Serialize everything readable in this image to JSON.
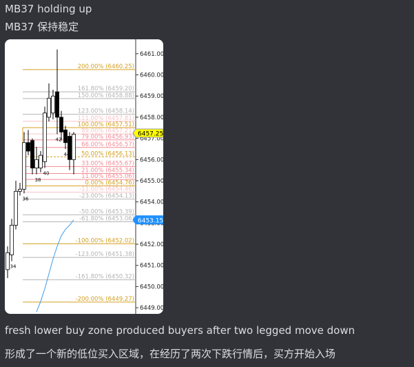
{
  "message": {
    "lines": [
      "MB37 holding up",
      "MB37 保持稳定"
    ],
    "caption": [
      "fresh lower buy zone produced buyers after two legged move down",
      "形成了一个新的低位买入区域，在经历了两次下跌行情后，买方开始入场"
    ]
  },
  "chart": {
    "ylim": [
      6448.71,
      6461.68
    ],
    "yticks": [
      {
        "value": 6461,
        "label": "6461.00"
      },
      {
        "value": 6460,
        "label": "6460.00"
      },
      {
        "value": 6459,
        "label": "6459.00"
      },
      {
        "value": 6458,
        "label": "6458.00"
      },
      {
        "value": 6457,
        "label": "6457.00"
      },
      {
        "value": 6456,
        "label": "6456.00"
      },
      {
        "value": 6455,
        "label": "6455.00"
      },
      {
        "value": 6454,
        "label": "6454.00"
      },
      {
        "value": 6453,
        "label": "6453.00"
      },
      {
        "value": 6452,
        "label": "6452.00"
      },
      {
        "value": 6451,
        "label": "6451.00"
      },
      {
        "value": 6450,
        "label": "6450.00"
      },
      {
        "value": 6449,
        "label": "6449.00"
      }
    ],
    "fibs": [
      {
        "label": "200.00% (6460.25)",
        "price": 6460.25,
        "color": "#d4a020"
      },
      {
        "label": "161.80% (6459.20)",
        "price": 6459.2,
        "color": "#b4b4b4"
      },
      {
        "label": "150.00% (6458.88)",
        "price": 6458.88,
        "color": "#b4b4b4"
      },
      {
        "label": "123.00% (6458.14)",
        "price": 6458.14,
        "color": "#b4b4b4"
      },
      {
        "label": "111.00% (6457.81)",
        "price": 6457.81,
        "color": "#f6c4c8"
      },
      {
        "label": "100.00% (6457.51)",
        "price": 6457.51,
        "color": "#d4a020"
      },
      {
        "label": "89.00% (6457.21)",
        "price": 6457.21,
        "color": "#f6c4c8"
      },
      {
        "label": "79.00% (6456.93)",
        "price": 6456.93,
        "color": "#f28c96"
      },
      {
        "label": "66.00% (6456.57)",
        "price": 6456.57,
        "color": "#f28c96"
      },
      {
        "label": "50.00% (6456.13)",
        "price": 6456.13,
        "color": "#d4a020"
      },
      {
        "label": "33.00% (6455.67)",
        "price": 6455.67,
        "color": "#f28c96"
      },
      {
        "label": "21.00% (6455.34)",
        "price": 6455.34,
        "color": "#f28c96"
      },
      {
        "label": "11.00% (6455.06)",
        "price": 6455.06,
        "color": "#f28c96"
      },
      {
        "label": "0.00% (6454.76)",
        "price": 6454.76,
        "color": "#d4a020"
      },
      {
        "label": "-11.00% (6454.46)",
        "price": 6454.46,
        "color": "#f6c4c8"
      },
      {
        "label": "-23.00% (6454.13)",
        "price": 6454.13,
        "color": "#b4b4b4"
      },
      {
        "label": "-50.00% (6453.39)",
        "price": 6453.39,
        "color": "#b4b4b4"
      },
      {
        "label": "-61.80% (6453.06)",
        "price": 6453.06,
        "color": "#b4b4b4"
      },
      {
        "label": "-100.00% (6452.02)",
        "price": 6452.02,
        "color": "#d4a020"
      },
      {
        "label": "-123.00% (6451.38)",
        "price": 6451.38,
        "color": "#b4b4b4"
      },
      {
        "label": "-161.80% (6450.32)",
        "price": 6450.32,
        "color": "#b4b4b4"
      },
      {
        "label": "-200.00% (6449.27)",
        "price": 6449.27,
        "color": "#d4a020"
      }
    ],
    "candles": [
      {
        "open": 6450.8,
        "high": 6451.9,
        "low": 6450.4,
        "close": 6451.6
      },
      {
        "open": 6451.5,
        "high": 6453.2,
        "low": 6451.2,
        "close": 6452.9
      },
      {
        "open": 6452.9,
        "high": 6455.0,
        "low": 6452.7,
        "close": 6454.5
      },
      {
        "open": 6454.5,
        "high": 6454.9,
        "low": 6454.3,
        "close": 6454.6
      },
      {
        "open": 6454.6,
        "high": 6457.3,
        "low": 6454.4,
        "close": 6456.8
      },
      {
        "open": 6456.8,
        "high": 6457.4,
        "low": 6456.2,
        "close": 6456.4
      },
      {
        "open": 6456.9,
        "high": 6457.0,
        "low": 6455.3,
        "close": 6455.6
      },
      {
        "open": 6455.6,
        "high": 6456.6,
        "low": 6455.3,
        "close": 6456.0
      },
      {
        "open": 6455.6,
        "high": 6456.4,
        "low": 6455.4,
        "close": 6456.2
      },
      {
        "open": 6455.9,
        "high": 6458.5,
        "low": 6455.6,
        "close": 6458.2
      },
      {
        "open": 6458.0,
        "high": 6459.6,
        "low": 6457.8,
        "close": 6458.9
      },
      {
        "open": 6458.2,
        "high": 6459.3,
        "low": 6457.9,
        "close": 6459.0
      },
      {
        "open": 6459.2,
        "high": 6461.2,
        "low": 6457.2,
        "close": 6458.0
      },
      {
        "open": 6458.0,
        "high": 6458.3,
        "low": 6456.9,
        "close": 6457.3
      },
      {
        "open": 6457.4,
        "high": 6457.6,
        "low": 6456.5,
        "close": 6456.8
      },
      {
        "open": 6457.1,
        "high": 6457.3,
        "low": 6455.5,
        "close": 6456.0
      },
      {
        "open": 6456.0,
        "high": 6457.3,
        "low": 6455.3,
        "close": 6457.2
      }
    ],
    "bar_labels": [
      {
        "index": 1,
        "text": "34"
      },
      {
        "index": 4,
        "text": "36"
      },
      {
        "index": 7,
        "text": "38"
      },
      {
        "index": 9,
        "text": "40"
      },
      {
        "index": 12,
        "text": "42"
      },
      {
        "index": 14,
        "text": "44"
      }
    ],
    "average": [
      null,
      null,
      null,
      null,
      null,
      null,
      null,
      6448.8,
      6449.3,
      6449.9,
      6450.6,
      6451.3,
      6451.9,
      6452.4,
      6452.7,
      6452.9,
      6453.15
    ],
    "price_tags": [
      {
        "value": 6457.25,
        "label": "6457.25",
        "color": "#ffff00"
      },
      {
        "value": 6453.15,
        "label": "6453.15",
        "color": "#1e90ff"
      }
    ]
  }
}
